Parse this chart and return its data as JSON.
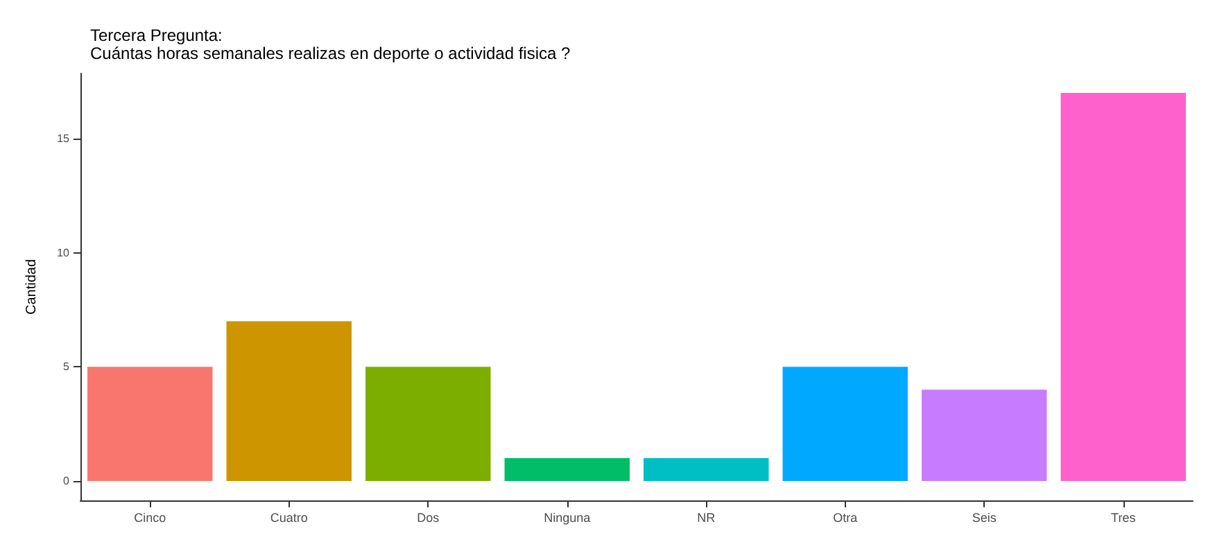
{
  "chart_data": {
    "type": "bar",
    "title": "Tercera Pregunta:\nCuántas horas semanales realizas en deporte o actividad fisica ?",
    "ylabel": "Cantidad",
    "categories": [
      "Cinco",
      "Cuatro",
      "Dos",
      "Ninguna",
      "NR",
      "Otra",
      "Seis",
      "Tres"
    ],
    "values": [
      5,
      7,
      5,
      1,
      1,
      5,
      4,
      17
    ],
    "colors": [
      "#f8766d",
      "#cd9600",
      "#7cae00",
      "#00be67",
      "#00bfc4",
      "#00a9ff",
      "#c77cff",
      "#ff61cc"
    ],
    "ylim": [
      -0.85,
      17.85
    ],
    "yticks": [
      0,
      5,
      10,
      15
    ],
    "grid": false
  }
}
